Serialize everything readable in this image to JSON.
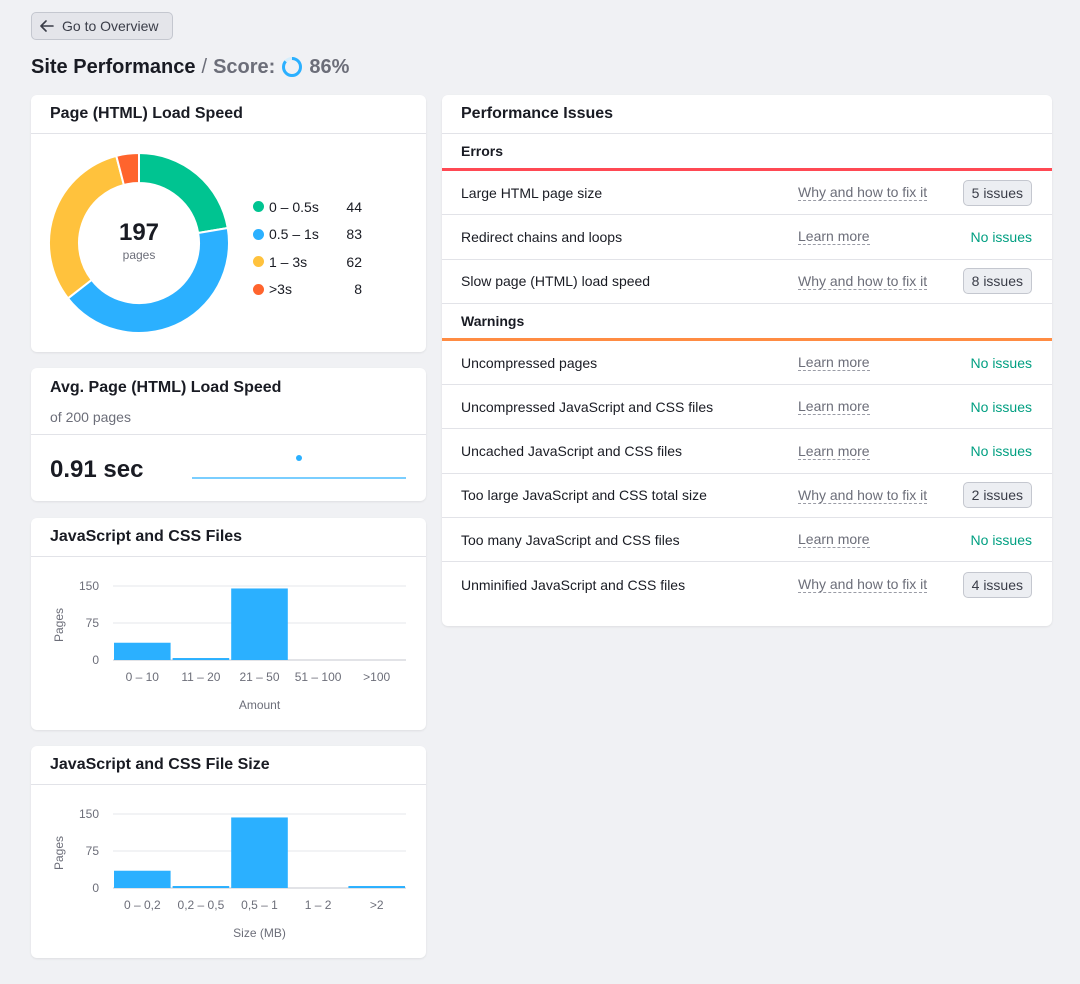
{
  "nav": {
    "back_label": "Go to Overview"
  },
  "header": {
    "title": "Site Performance",
    "separator": "/",
    "score_label": "Score:",
    "score_value": "86%",
    "score_fraction": 0.86
  },
  "colors": {
    "green": "#00c491",
    "blue": "#2bb0ff",
    "yellow": "#ffc23d",
    "orange": "#ff642d",
    "error_red": "#ff4953",
    "warning_orange": "#ff8c43",
    "bar_blue": "#2bb0ff"
  },
  "load_speed": {
    "title": "Page (HTML) Load Speed",
    "total": "197",
    "total_label": "pages",
    "legend": [
      {
        "label": "0 – 0.5s",
        "value": "44",
        "color": "#00c491"
      },
      {
        "label": "0.5 – 1s",
        "value": "83",
        "color": "#2bb0ff"
      },
      {
        "label": "1 – 3s",
        "value": "62",
        "color": "#ffc23d"
      },
      {
        "label": ">3s",
        "value": "8",
        "color": "#ff642d"
      }
    ]
  },
  "avg_speed": {
    "title": "Avg. Page (HTML) Load Speed",
    "subtitle": "of 200 pages",
    "value": "0.91 sec"
  },
  "js_css_files": {
    "title": "JavaScript and CSS Files",
    "chart_data": {
      "type": "bar",
      "categories": [
        "0 – 10",
        "11 – 20",
        "21 – 50",
        "51 – 100",
        ">100"
      ],
      "values": [
        35,
        4,
        145,
        0,
        0
      ],
      "xlabel": "Amount",
      "ylabel": "Pages",
      "yticks": [
        "0",
        "75",
        "150"
      ],
      "ylim": [
        0,
        150
      ]
    }
  },
  "js_css_size": {
    "title": "JavaScript and CSS File Size",
    "chart_data": {
      "type": "bar",
      "categories": [
        "0 – 0,2",
        "0,2 – 0,5",
        "0,5 – 1",
        "1 – 2",
        ">2"
      ],
      "values": [
        35,
        4,
        143,
        0,
        4
      ],
      "xlabel": "Size (MB)",
      "ylabel": "Pages",
      "yticks": [
        "0",
        "75",
        "150"
      ],
      "ylim": [
        0,
        150
      ]
    }
  },
  "issues": {
    "title": "Performance Issues",
    "errors_label": "Errors",
    "warnings_label": "Warnings",
    "errors": [
      {
        "name": "Large HTML page size",
        "link": "Why and how to fix it",
        "status": "5 issues",
        "type": "badge"
      },
      {
        "name": "Redirect chains and loops",
        "link": "Learn more",
        "status": "No issues",
        "type": "ok"
      },
      {
        "name": "Slow page (HTML) load speed",
        "link": "Why and how to fix it",
        "status": "8 issues",
        "type": "badge"
      }
    ],
    "warnings": [
      {
        "name": "Uncompressed pages",
        "link": "Learn more",
        "status": "No issues",
        "type": "ok"
      },
      {
        "name": "Uncompressed JavaScript and CSS files",
        "link": "Learn more",
        "status": "No issues",
        "type": "ok"
      },
      {
        "name": "Uncached JavaScript and CSS files",
        "link": "Learn more",
        "status": "No issues",
        "type": "ok"
      },
      {
        "name": "Too large JavaScript and CSS total size",
        "link": "Why and how to fix it",
        "status": "2 issues",
        "type": "badge"
      },
      {
        "name": "Too many JavaScript and CSS files",
        "link": "Learn more",
        "status": "No issues",
        "type": "ok"
      },
      {
        "name": "Unminified JavaScript and CSS files",
        "link": "Why and how to fix it",
        "status": "4 issues",
        "type": "badge"
      }
    ]
  }
}
